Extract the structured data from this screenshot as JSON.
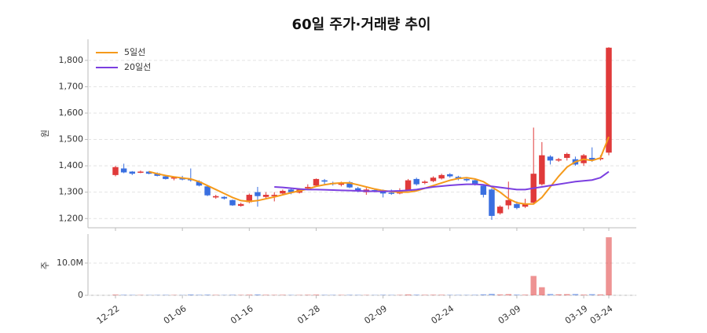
{
  "chart_data": {
    "type": "candlestick",
    "title": "60일 주가·거래량 추이",
    "categories": [
      "12-22",
      null,
      null,
      null,
      null,
      null,
      null,
      null,
      "01-06",
      null,
      null,
      null,
      null,
      null,
      null,
      null,
      "01-16",
      null,
      null,
      null,
      null,
      null,
      null,
      null,
      "01-28",
      null,
      null,
      null,
      null,
      null,
      null,
      null,
      "02-09",
      null,
      null,
      null,
      null,
      null,
      null,
      null,
      "02-24",
      null,
      null,
      null,
      null,
      null,
      null,
      null,
      "03-09",
      null,
      null,
      null,
      null,
      null,
      null,
      null,
      "03-19",
      null,
      null,
      "03-24"
    ],
    "open": [
      1365,
      1390,
      1378,
      1375,
      1378,
      1372,
      1360,
      1352,
      1355,
      1350,
      1340,
      1322,
      1280,
      1282,
      1270,
      1248,
      1262,
      1300,
      1282,
      1285,
      1295,
      1310,
      1298,
      1315,
      1325,
      1345,
      1335,
      1328,
      1338,
      1315,
      1300,
      1308,
      1302,
      1298,
      1295,
      1308,
      1350,
      1335,
      1342,
      1352,
      1368,
      1358,
      1350,
      1345,
      1325,
      1310,
      1220,
      1250,
      1255,
      1245,
      1260,
      1330,
      1435,
      1420,
      1430,
      1425,
      1410,
      1430,
      1425,
      1450
    ],
    "high": [
      1400,
      1408,
      1380,
      1382,
      1380,
      1375,
      1365,
      1360,
      1362,
      1390,
      1345,
      1325,
      1290,
      1285,
      1272,
      1260,
      1295,
      1320,
      1300,
      1300,
      1310,
      1315,
      1315,
      1330,
      1352,
      1350,
      1340,
      1340,
      1342,
      1320,
      1318,
      1312,
      1310,
      1310,
      1315,
      1350,
      1355,
      1345,
      1360,
      1370,
      1372,
      1362,
      1355,
      1350,
      1330,
      1315,
      1250,
      1340,
      1265,
      1275,
      1545,
      1490,
      1440,
      1430,
      1450,
      1435,
      1445,
      1470,
      1440,
      1850
    ],
    "low": [
      1360,
      1372,
      1365,
      1372,
      1368,
      1360,
      1348,
      1345,
      1345,
      1340,
      1322,
      1285,
      1275,
      1272,
      1248,
      1245,
      1258,
      1245,
      1275,
      1265,
      1290,
      1292,
      1295,
      1310,
      1320,
      1330,
      1325,
      1322,
      1315,
      1300,
      1290,
      1300,
      1280,
      1290,
      1292,
      1305,
      1325,
      1330,
      1338,
      1348,
      1355,
      1345,
      1340,
      1325,
      1280,
      1195,
      1215,
      1235,
      1235,
      1240,
      1255,
      1325,
      1405,
      1415,
      1420,
      1400,
      1400,
      1415,
      1420,
      1440
    ],
    "close": [
      1395,
      1375,
      1370,
      1378,
      1370,
      1362,
      1350,
      1356,
      1348,
      1345,
      1325,
      1288,
      1285,
      1276,
      1250,
      1255,
      1290,
      1285,
      1290,
      1290,
      1305,
      1300,
      1310,
      1320,
      1350,
      1340,
      1330,
      1335,
      1318,
      1305,
      1310,
      1305,
      1295,
      1295,
      1305,
      1345,
      1330,
      1340,
      1355,
      1365,
      1360,
      1350,
      1345,
      1330,
      1290,
      1210,
      1245,
      1270,
      1240,
      1255,
      1370,
      1440,
      1420,
      1425,
      1445,
      1405,
      1440,
      1420,
      1430,
      1848
    ],
    "up_color": "#e03a3a",
    "down_color": "#3a6fe0",
    "series": [
      {
        "name": "5일선",
        "color": "#f59a1b",
        "values": [
          null,
          null,
          null,
          null,
          1378,
          1370,
          1363,
          1358,
          1354,
          1350,
          1340,
          1325,
          1310,
          1295,
          1280,
          1268,
          1265,
          1268,
          1275,
          1282,
          1290,
          1298,
          1305,
          1312,
          1322,
          1328,
          1333,
          1335,
          1335,
          1328,
          1320,
          1312,
          1306,
          1302,
          1300,
          1300,
          1305,
          1315,
          1325,
          1335,
          1345,
          1352,
          1355,
          1350,
          1340,
          1320,
          1300,
          1275,
          1260,
          1255,
          1255,
          1280,
          1320,
          1360,
          1395,
          1415,
          1425,
          1420,
          1430,
          1510
        ]
      },
      {
        "name": "20일선",
        "color": "#7b3fe0",
        "values": [
          null,
          null,
          null,
          null,
          null,
          null,
          null,
          null,
          null,
          null,
          null,
          null,
          null,
          null,
          null,
          null,
          null,
          null,
          null,
          1320,
          1318,
          1315,
          1312,
          1310,
          1310,
          1309,
          1308,
          1307,
          1306,
          1305,
          1304,
          1303,
          1303,
          1304,
          1305,
          1307,
          1310,
          1315,
          1320,
          1323,
          1326,
          1328,
          1330,
          1330,
          1328,
          1322,
          1318,
          1314,
          1310,
          1310,
          1315,
          1320,
          1325,
          1330,
          1335,
          1340,
          1343,
          1346,
          1355,
          1378
        ]
      }
    ],
    "ylim": [
      1165,
      1880
    ],
    "yticks": [
      {
        "value": 1200,
        "label": "1,200"
      },
      {
        "value": 1300,
        "label": "1,300"
      },
      {
        "value": 1400,
        "label": "1,400"
      },
      {
        "value": 1500,
        "label": "1,500"
      },
      {
        "value": 1600,
        "label": "1,600"
      },
      {
        "value": 1700,
        "label": "1,700"
      },
      {
        "value": 1800,
        "label": "1,800"
      }
    ],
    "ylabel": "원",
    "grid": true,
    "legend": "upper left",
    "volume": {
      "values": [
        200000,
        150000,
        120000,
        100000,
        90000,
        110000,
        130000,
        100000,
        90000,
        250000,
        150000,
        200000,
        120000,
        100000,
        160000,
        120000,
        180000,
        260000,
        150000,
        120000,
        140000,
        110000,
        100000,
        150000,
        200000,
        130000,
        120000,
        110000,
        140000,
        120000,
        100000,
        90000,
        150000,
        110000,
        120000,
        250000,
        180000,
        140000,
        160000,
        150000,
        130000,
        120000,
        110000,
        140000,
        300000,
        450000,
        250000,
        350000,
        200000,
        180000,
        6000000,
        2500000,
        400000,
        300000,
        350000,
        400000,
        200000,
        350000,
        250000,
        18000000
      ],
      "ylim": [
        0,
        19000000
      ],
      "yticks": [
        0,
        {
          "value": 10000000,
          "label": "10.0M"
        }
      ],
      "ylabel": "주"
    }
  }
}
